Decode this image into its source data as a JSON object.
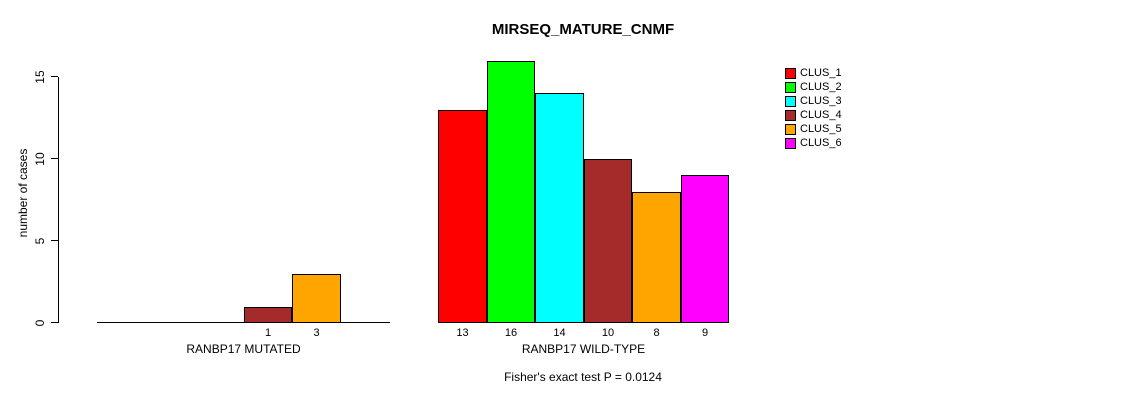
{
  "title": "MIRSEQ_MATURE_CNMF",
  "footer": "Fisher's exact test P = 0.0124",
  "y_axis": {
    "label": "number of cases"
  },
  "chart_data": {
    "type": "bar",
    "title": "MIRSEQ_MATURE_CNMF",
    "xlabel": "",
    "ylabel": "number of cases",
    "ylim": [
      0,
      15
    ],
    "yticks": [
      0,
      5,
      10,
      15
    ],
    "grid": false,
    "legend_position": "top-right",
    "clusters": [
      "CLUS_1",
      "CLUS_2",
      "CLUS_3",
      "CLUS_4",
      "CLUS_5",
      "CLUS_6"
    ],
    "colors": [
      "#FF0000",
      "#00FF00",
      "#00FFFF",
      "#A52A2A",
      "#FFA500",
      "#FF00FF"
    ],
    "groups": [
      {
        "label": "RANBP17 MUTATED",
        "values": [
          0,
          0,
          0,
          1,
          3,
          0
        ],
        "bar_labels": [
          "",
          "",
          "",
          "1",
          "3",
          ""
        ]
      },
      {
        "label": "RANBP17 WILD-TYPE",
        "values": [
          13,
          16,
          14,
          10,
          8,
          9
        ],
        "bar_labels": [
          "13",
          "16",
          "14",
          "10",
          "8",
          "9"
        ]
      }
    ],
    "annotation": "Fisher's exact test P = 0.0124"
  }
}
